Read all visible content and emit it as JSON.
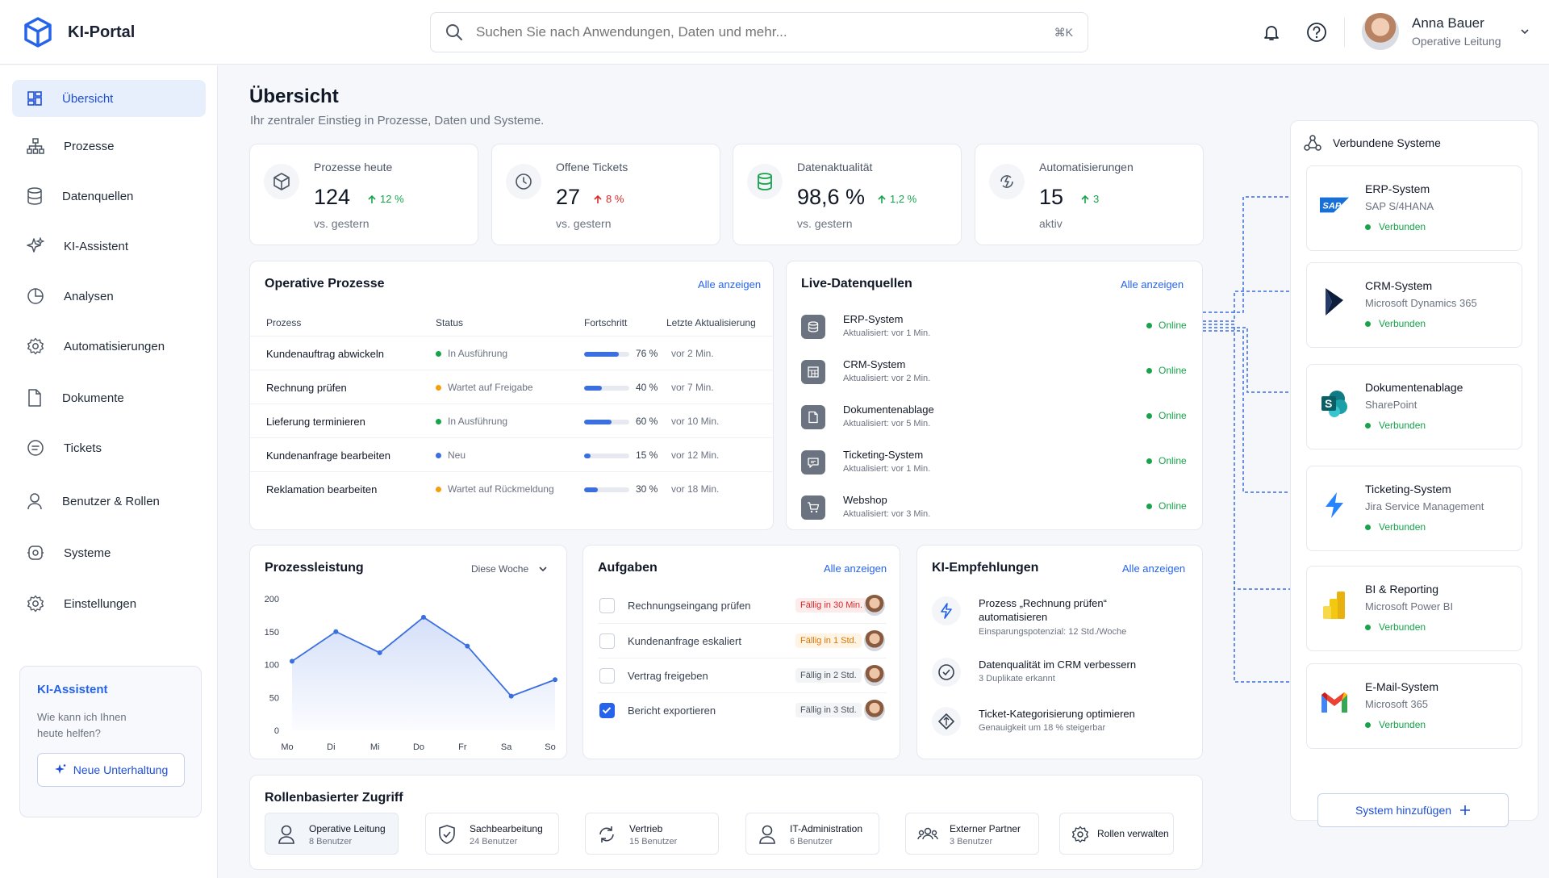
{
  "app": {
    "name": "KI-Portal"
  },
  "search": {
    "placeholder": "Suchen Sie nach Anwendungen, Daten und mehr...",
    "shortcut": "⌘K"
  },
  "user": {
    "name": "Anna Bauer",
    "role": "Operative Leitung"
  },
  "sidebar": {
    "items": [
      {
        "label": "Übersicht",
        "icon": "dashboard-icon",
        "active": true
      },
      {
        "label": "Prozesse",
        "icon": "process-icon"
      },
      {
        "label": "Datenquellen",
        "icon": "database-icon"
      },
      {
        "label": "KI-Assistent",
        "icon": "sparkle-icon"
      },
      {
        "label": "Analysen",
        "icon": "pie-chart-icon"
      },
      {
        "label": "Automatisierungen",
        "icon": "gear-icon"
      },
      {
        "label": "Dokumente",
        "icon": "document-icon"
      },
      {
        "label": "Tickets",
        "icon": "ticket-icon"
      },
      {
        "label": "Benutzer & Rollen",
        "icon": "user-icon"
      },
      {
        "label": "Systeme",
        "icon": "system-icon"
      },
      {
        "label": "Einstellungen",
        "icon": "settings-icon"
      }
    ],
    "assistant": {
      "title": "KI-Assistent",
      "text": "Wie kann ich Ihnen heute helfen?",
      "button": "Neue Unterhaltung"
    }
  },
  "page": {
    "title": "Übersicht",
    "subtitle": "Ihr zentraler Einstieg in Prozesse, Daten und Systeme."
  },
  "kpis": [
    {
      "label": "Prozesse heute",
      "value": "124",
      "change": "12 %",
      "trend": "up",
      "sub": "vs. gestern",
      "icon": "cube-icon"
    },
    {
      "label": "Offene Tickets",
      "value": "27",
      "change": "8 %",
      "trend": "down",
      "sub": "vs. gestern",
      "icon": "clock-icon"
    },
    {
      "label": "Datenaktualität",
      "value": "98,6 %",
      "change": "1,2 %",
      "trend": "up",
      "sub": "vs. gestern",
      "icon": "database-icon"
    },
    {
      "label": "Automatisierungen",
      "value": "15",
      "change": "3",
      "trend": "up",
      "sub": "aktiv",
      "icon": "automation-icon"
    }
  ],
  "processes": {
    "title": "Operative Prozesse",
    "link": "Alle anzeigen",
    "headers": [
      "Prozess",
      "Status",
      "Fortschritt",
      "Letzte Aktualisierung"
    ],
    "rows": [
      {
        "name": "Kundenauftrag abwickeln",
        "status": "In Ausführung",
        "color": "#16a34a",
        "progress": 76,
        "pct": "76 %",
        "updated": "vor 2 Min."
      },
      {
        "name": "Rechnung prüfen",
        "status": "Wartet auf Freigabe",
        "color": "#f59e0b",
        "progress": 40,
        "pct": "40 %",
        "updated": "vor 7 Min."
      },
      {
        "name": "Lieferung terminieren",
        "status": "In Ausführung",
        "color": "#16a34a",
        "progress": 60,
        "pct": "60 %",
        "updated": "vor 10 Min."
      },
      {
        "name": "Kundenanfrage bearbeiten",
        "status": "Neu",
        "color": "#3b6fe0",
        "progress": 15,
        "pct": "15 %",
        "updated": "vor 12 Min."
      },
      {
        "name": "Reklamation bearbeiten",
        "status": "Wartet auf Rückmeldung",
        "color": "#f59e0b",
        "progress": 30,
        "pct": "30 %",
        "updated": "vor 18 Min."
      }
    ]
  },
  "live": {
    "title": "Live-Datenquellen",
    "link": "Alle anzeigen",
    "rows": [
      {
        "name": "ERP-System",
        "updated": "Aktualisiert: vor 1 Min.",
        "status": "Online",
        "icon": "database-icon"
      },
      {
        "name": "CRM-System",
        "updated": "Aktualisiert: vor 2 Min.",
        "status": "Online",
        "icon": "table-icon"
      },
      {
        "name": "Dokumentenablage",
        "updated": "Aktualisiert: vor 5 Min.",
        "status": "Online",
        "icon": "document-icon"
      },
      {
        "name": "Ticketing-System",
        "updated": "Aktualisiert: vor 1 Min.",
        "status": "Online",
        "icon": "chat-icon"
      },
      {
        "name": "Webshop",
        "updated": "Aktualisiert: vor 3 Min.",
        "status": "Online",
        "icon": "cart-icon"
      }
    ]
  },
  "performance": {
    "title": "Prozessleistung",
    "period": "Diese Woche",
    "chart_data": {
      "type": "area",
      "categories": [
        "Mo",
        "Di",
        "Mi",
        "Do",
        "Fr",
        "Sa",
        "So"
      ],
      "values": [
        105,
        150,
        118,
        172,
        128,
        52,
        77
      ],
      "ylim": [
        0,
        200
      ],
      "yticks": [
        "200",
        "150",
        "100",
        "50",
        "0"
      ],
      "color": "#3b6fe0"
    }
  },
  "tasks": {
    "title": "Aufgaben",
    "link": "Alle anzeigen",
    "items": [
      {
        "label": "Rechnungseingang prüfen",
        "due": "Fällig in 30 Min.",
        "tone": "red",
        "done": false
      },
      {
        "label": "Kundenanfrage eskaliert",
        "due": "Fällig in 1 Std.",
        "tone": "org",
        "done": false
      },
      {
        "label": "Vertrag freigeben",
        "due": "Fällig in 2 Std.",
        "tone": "gry",
        "done": false
      },
      {
        "label": "Bericht exportieren",
        "due": "Fällig in 3 Std.",
        "tone": "gry",
        "done": true
      }
    ]
  },
  "recommendations": {
    "title": "KI-Empfehlungen",
    "link": "Alle anzeigen",
    "items": [
      {
        "title": "Prozess „Rechnung prüfen“ automatisieren",
        "sub": "Einsparungspotenzial: 12 Std./Woche",
        "icon": "bolt-icon"
      },
      {
        "title": "Datenqualität im CRM verbessern",
        "sub": "3 Duplikate erkannt",
        "icon": "check-circle-icon"
      },
      {
        "title": "Ticket-Kategorisierung optimieren",
        "sub": "Genauigkeit um 18 % steigerbar",
        "icon": "arrows-icon"
      }
    ]
  },
  "roles": {
    "title": "Rollenbasierter Zugriff",
    "items": [
      {
        "name": "Operative Leitung",
        "count": "8 Benutzer",
        "icon": "user-icon",
        "active": true
      },
      {
        "name": "Sachbearbeitung",
        "count": "24 Benutzer",
        "icon": "shield-icon"
      },
      {
        "name": "Vertrieb",
        "count": "15 Benutzer",
        "icon": "refresh-icon"
      },
      {
        "name": "IT-Administration",
        "count": "6 Benutzer",
        "icon": "user-icon"
      },
      {
        "name": "Externer Partner",
        "count": "3 Benutzer",
        "icon": "users-icon"
      }
    ],
    "manage": "Rollen verwalten"
  },
  "systems": {
    "title": "Verbundene Systeme",
    "items": [
      {
        "name": "ERP-System",
        "vendor": "SAP S/4HANA",
        "status": "Verbunden",
        "logo": "sap-logo",
        "logo_text": "SAP"
      },
      {
        "name": "CRM-System",
        "vendor": "Microsoft Dynamics 365",
        "status": "Verbunden",
        "logo": "dynamics-logo"
      },
      {
        "name": "Dokumentenablage",
        "vendor": "SharePoint",
        "status": "Verbunden",
        "logo": "sharepoint-logo",
        "logo_text": "S"
      },
      {
        "name": "Ticketing-System",
        "vendor": "Jira Service Management",
        "status": "Verbunden",
        "logo": "jira-logo"
      },
      {
        "name": "BI & Reporting",
        "vendor": "Microsoft Power BI",
        "status": "Verbunden",
        "logo": "powerbi-logo"
      },
      {
        "name": "E-Mail-System",
        "vendor": "Microsoft 365",
        "status": "Verbunden",
        "logo": "gmail-logo"
      }
    ],
    "add": "System hinzufügen"
  },
  "colors": {
    "accent": "#2563eb",
    "online": "#16a34a",
    "up": "#16a34a",
    "down": "#dc2626"
  }
}
